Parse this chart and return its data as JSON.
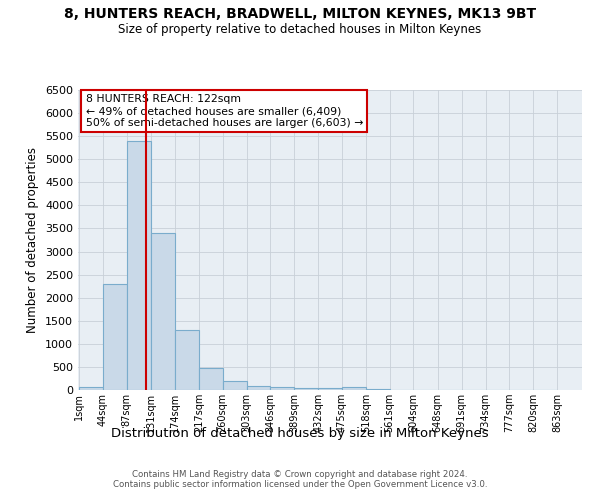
{
  "title": "8, HUNTERS REACH, BRADWELL, MILTON KEYNES, MK13 9BT",
  "subtitle": "Size of property relative to detached houses in Milton Keynes",
  "xlabel": "Distribution of detached houses by size in Milton Keynes",
  "ylabel": "Number of detached properties",
  "bin_labels": [
    "1sqm",
    "44sqm",
    "87sqm",
    "131sqm",
    "174sqm",
    "217sqm",
    "260sqm",
    "303sqm",
    "346sqm",
    "389sqm",
    "432sqm",
    "475sqm",
    "518sqm",
    "561sqm",
    "604sqm",
    "648sqm",
    "691sqm",
    "734sqm",
    "777sqm",
    "820sqm",
    "863sqm"
  ],
  "bin_edges": [
    1,
    44,
    87,
    131,
    174,
    217,
    260,
    303,
    346,
    389,
    432,
    475,
    518,
    561,
    604,
    648,
    691,
    734,
    777,
    820,
    863
  ],
  "bar_heights": [
    75,
    2300,
    5400,
    3400,
    1300,
    480,
    185,
    90,
    75,
    50,
    40,
    60,
    15,
    5,
    3,
    2,
    1,
    1,
    1,
    1
  ],
  "bar_color": "#c9d9e8",
  "bar_edge_color": "#7aaccc",
  "ylim": [
    0,
    6500
  ],
  "yticks": [
    0,
    500,
    1000,
    1500,
    2000,
    2500,
    3000,
    3500,
    4000,
    4500,
    5000,
    5500,
    6000,
    6500
  ],
  "property_size": 122,
  "vline_color": "#cc0000",
  "annotation_title": "8 HUNTERS REACH: 122sqm",
  "annotation_line1": "← 49% of detached houses are smaller (6,409)",
  "annotation_line2": "50% of semi-detached houses are larger (6,603) →",
  "annotation_box_color": "#cc0000",
  "grid_color": "#c8d0d8",
  "background_color": "#e8eef4",
  "footer_line1": "Contains HM Land Registry data © Crown copyright and database right 2024.",
  "footer_line2": "Contains public sector information licensed under the Open Government Licence v3.0."
}
